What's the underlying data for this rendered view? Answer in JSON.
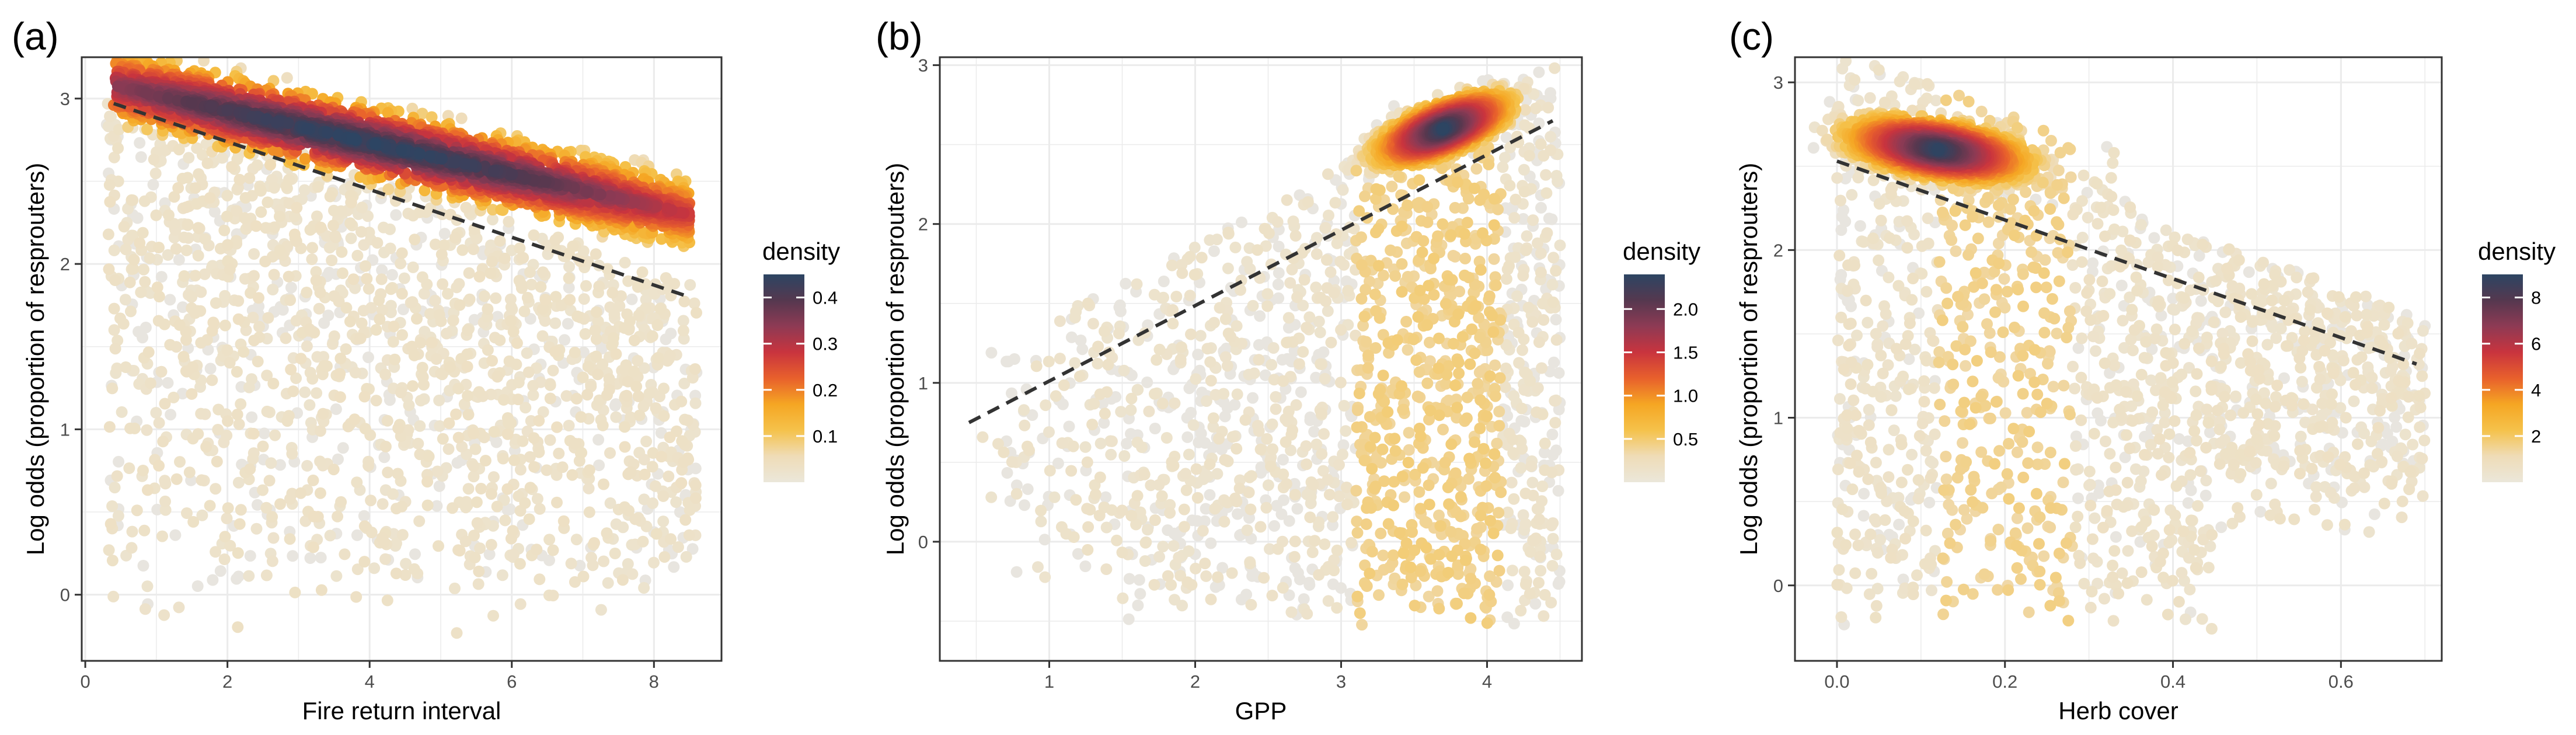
{
  "palette": {
    "low": "#e8e5df",
    "stops": [
      "#ebe7da",
      "#efdcb7",
      "#f5c24b",
      "#f5a623",
      "#e8602c",
      "#c9343e",
      "#8e3a54",
      "#55384f",
      "#2c4563"
    ],
    "trend_line": "#333333",
    "grid": "#ebebeb",
    "border": "#333333"
  },
  "chart_data": [
    {
      "type": "scatter",
      "panel_label": "(a)",
      "xlabel": "Fire return interval",
      "ylabel": "Log odds (proportion of resprouters)",
      "xlim": [
        -0.05,
        8.95
      ],
      "ylim": [
        -0.4,
        3.25
      ],
      "x_ticks": [
        0,
        2,
        4,
        6,
        8
      ],
      "x_tick_labels": [
        "0",
        "2",
        "4",
        "6",
        "8"
      ],
      "y_ticks": [
        0,
        1,
        2,
        3
      ],
      "y_tick_labels": [
        "0",
        "1",
        "2",
        "3"
      ],
      "grid": true,
      "legend": {
        "title": "density",
        "placement": "right",
        "range": [
          0.0,
          0.45
        ],
        "breaks": [
          0.1,
          0.2,
          0.3,
          0.4
        ],
        "labels": [
          "0.1",
          "0.2",
          "0.3",
          "0.4"
        ]
      },
      "trend_line": {
        "style": "dashed",
        "x": [
          0.4,
          8.5
        ],
        "y": [
          2.97,
          1.8
        ]
      },
      "dense_band": {
        "x": [
          0.4,
          8.5
        ],
        "y_center": [
          3.08,
          2.3
        ],
        "width": 0.14
      },
      "point_cloud": {
        "x_range": [
          0.3,
          8.6
        ],
        "y_min": -0.25
      }
    },
    {
      "type": "scatter",
      "panel_label": "(b)",
      "xlabel": "GPP",
      "ylabel": "Log odds (proportion of resprouters)",
      "xlim": [
        0.25,
        4.65
      ],
      "ylim": [
        -0.75,
        3.05
      ],
      "x_ticks": [
        1,
        2,
        3,
        4
      ],
      "x_tick_labels": [
        "1",
        "2",
        "3",
        "4"
      ],
      "y_ticks": [
        0,
        1,
        2,
        3
      ],
      "y_tick_labels": [
        "0",
        "1",
        "2",
        "3"
      ],
      "grid": true,
      "legend": {
        "title": "density",
        "placement": "right",
        "range": [
          0.0,
          2.4
        ],
        "breaks": [
          0.5,
          1.0,
          1.5,
          2.0
        ],
        "labels": [
          "0.5",
          "1.0",
          "1.5",
          "2.0"
        ]
      },
      "trend_line": {
        "style": "dashed",
        "x": [
          0.45,
          4.45
        ],
        "y": [
          0.75,
          2.65
        ]
      },
      "dense_center": [
        3.7,
        2.6
      ],
      "point_cloud": {
        "x_range": [
          0.5,
          4.5
        ],
        "y_min": -0.55
      }
    },
    {
      "type": "scatter",
      "panel_label": "(c)",
      "xlabel": "Herb cover",
      "ylabel": "Log odds (proportion of resprouters)",
      "xlim": [
        -0.05,
        0.72
      ],
      "ylim": [
        -0.45,
        3.15
      ],
      "x_ticks": [
        0.0,
        0.2,
        0.4,
        0.6
      ],
      "x_tick_labels": [
        "0.0",
        "0.2",
        "0.4",
        "0.6"
      ],
      "y_ticks": [
        0,
        1,
        2,
        3
      ],
      "y_tick_labels": [
        "0",
        "1",
        "2",
        "3"
      ],
      "grid": true,
      "legend": {
        "title": "density",
        "placement": "right",
        "range": [
          0.0,
          9.0
        ],
        "breaks": [
          2,
          4,
          6,
          8
        ],
        "labels": [
          "2",
          "4",
          "6",
          "8"
        ]
      },
      "trend_line": {
        "style": "dashed",
        "x": [
          0.0,
          0.69
        ],
        "y": [
          2.53,
          1.32
        ]
      },
      "dense_center": [
        0.12,
        2.6
      ],
      "point_cloud": {
        "x_range": [
          0.0,
          0.7
        ],
        "y_min": -0.3
      }
    }
  ]
}
